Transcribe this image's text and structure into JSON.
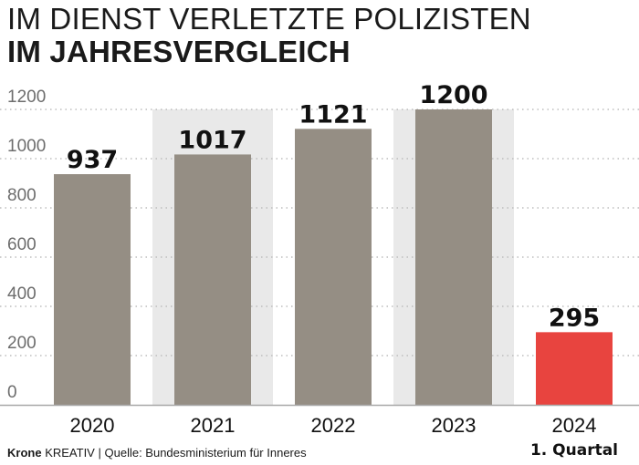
{
  "title": {
    "line1": "IM DIENST VERLETZTE POLIZISTEN",
    "line2": "IM JAHRESVERGLEICH"
  },
  "footer": {
    "brand": "Krone",
    "brand_suffix": "KREATIV",
    "source": "Quelle: Bundesministerium für Inneres"
  },
  "colors": {
    "bar": "#958e84",
    "highlight": "#e8443f",
    "band": "#e9e9e9",
    "grid": "#bdbdbd",
    "axis": "#a8a8a8"
  },
  "chart_data": {
    "type": "bar",
    "categories": [
      "2020",
      "2021",
      "2022",
      "2023",
      "2024"
    ],
    "category_sublabels": [
      "",
      "",
      "",
      "",
      "1. Quartal"
    ],
    "values": [
      937,
      1017,
      1121,
      1200,
      295
    ],
    "data_labels": [
      "937",
      "1017",
      "1121",
      "1200",
      "295"
    ],
    "highlight_index": 4,
    "ylim": [
      0,
      1200
    ],
    "yticks": [
      "0",
      "200",
      "400",
      "600",
      "800",
      "1000",
      "1200"
    ],
    "grid": true
  }
}
